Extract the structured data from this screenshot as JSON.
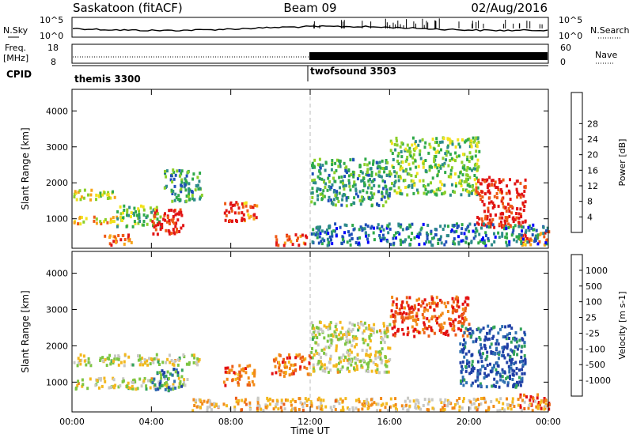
{
  "header": {
    "station": "Saskatoon (fitACF)",
    "beam": "Beam 09",
    "date": "02/Aug/2016"
  },
  "top_panels": {
    "nsky_label": "N.Sky",
    "nsky_ticks": [
      "10^5",
      "10^0"
    ],
    "nsearch_label": "N.Search",
    "freq_label": "Freq.",
    "freq_unit": "[MHz]",
    "freq_ticks": [
      "18",
      "8"
    ],
    "nave_label": "Nave",
    "nave_ticks": [
      "60",
      "0"
    ],
    "cpid_label": "CPID",
    "cpid_segments": [
      "themis 3300",
      "twofsound 3503"
    ]
  },
  "chart_data": [
    {
      "type": "heatmap",
      "name": "power",
      "xlabel": "Time UT",
      "ylabel": "Slant Range [km]",
      "xlim": [
        0,
        24
      ],
      "ylim": [
        180,
        4600
      ],
      "x_ticks": [
        "00:00",
        "04:00",
        "08:00",
        "12:00",
        "16:00",
        "20:00",
        "00:00"
      ],
      "y_ticks": [
        1000,
        2000,
        3000,
        4000
      ],
      "colorbar_label": "Power [dB]",
      "colorbar_ticks": [
        4,
        8,
        12,
        16,
        20,
        24,
        28
      ],
      "colorbar_colors": [
        "#0000ff",
        "#1f4fb8",
        "#2e8b8b",
        "#2faa4a",
        "#8ccf2a",
        "#f2e21d",
        "#f7a418",
        "#ef5a16",
        "#e11414"
      ],
      "regions": [
        {
          "x": [
            0,
            2.2
          ],
          "y": [
            1550,
            1850
          ],
          "level": 0.55
        },
        {
          "x": [
            0,
            2.4
          ],
          "y": [
            900,
            1100
          ],
          "level": 0.7
        },
        {
          "x": [
            2.2,
            4.5
          ],
          "y": [
            800,
            1400
          ],
          "level": 0.45
        },
        {
          "x": [
            4.0,
            5.6
          ],
          "y": [
            600,
            1300
          ],
          "level": 0.95
        },
        {
          "x": [
            4.6,
            6.5
          ],
          "y": [
            1500,
            2400
          ],
          "level": 0.35
        },
        {
          "x": [
            1.5,
            3.0
          ],
          "y": [
            300,
            600
          ],
          "level": 0.85
        },
        {
          "x": [
            7.6,
            8.6
          ],
          "y": [
            950,
            1500
          ],
          "level": 1.0
        },
        {
          "x": [
            8.6,
            9.3
          ],
          "y": [
            950,
            1500
          ],
          "level": 0.8
        },
        {
          "x": [
            10.2,
            11.8
          ],
          "y": [
            300,
            600
          ],
          "level": 0.9
        },
        {
          "x": [
            12.0,
            16.0
          ],
          "y": [
            1400,
            2700
          ],
          "level": 0.35
        },
        {
          "x": [
            16.0,
            20.5
          ],
          "y": [
            1700,
            3300
          ],
          "level": 0.45
        },
        {
          "x": [
            20.3,
            22.8
          ],
          "y": [
            800,
            2200
          ],
          "level": 0.95
        },
        {
          "x": [
            22.5,
            24.0
          ],
          "y": [
            300,
            700
          ],
          "level": 0.8
        },
        {
          "x": [
            12.0,
            24.0
          ],
          "y": [
            300,
            900
          ],
          "level": 0.25
        }
      ]
    },
    {
      "type": "heatmap",
      "name": "velocity",
      "xlabel": "Time UT",
      "ylabel": "Slant Range [km]",
      "xlim": [
        0,
        24
      ],
      "ylim": [
        180,
        4600
      ],
      "x_ticks": [
        "00:00",
        "04:00",
        "08:00",
        "12:00",
        "16:00",
        "20:00",
        "00:00"
      ],
      "y_ticks": [
        1000,
        2000,
        3000,
        4000
      ],
      "colorbar_label": "Velocity [m s-1]",
      "colorbar_ticks": [
        1000,
        500,
        100,
        25,
        -25,
        -100,
        -500,
        -1000
      ],
      "colorbar_colors": [
        "#1f3fa6",
        "#2e6fb0",
        "#33a35a",
        "#7dc542",
        "#c8c8c4",
        "#f3b81e",
        "#f28a17",
        "#ec5e18",
        "#e31010"
      ],
      "regions": [
        {
          "x": [
            0,
            6.5
          ],
          "y": [
            1500,
            1800
          ],
          "level": 0.5
        },
        {
          "x": [
            0,
            6.0
          ],
          "y": [
            850,
            1150
          ],
          "level": 0.5
        },
        {
          "x": [
            4.0,
            5.5
          ],
          "y": [
            800,
            1400
          ],
          "level": 0.22
        },
        {
          "x": [
            7.6,
            9.2
          ],
          "y": [
            950,
            1500
          ],
          "level": 0.82
        },
        {
          "x": [
            10.0,
            12.0
          ],
          "y": [
            1200,
            1800
          ],
          "level": 0.78
        },
        {
          "x": [
            12.0,
            16.0
          ],
          "y": [
            1300,
            2700
          ],
          "level": 0.5
        },
        {
          "x": [
            16.0,
            20.0
          ],
          "y": [
            2300,
            3400
          ],
          "level": 0.88
        },
        {
          "x": [
            19.5,
            22.8
          ],
          "y": [
            900,
            2600
          ],
          "level": 0.1
        },
        {
          "x": [
            22.5,
            24.0
          ],
          "y": [
            300,
            700
          ],
          "level": 0.9
        },
        {
          "x": [
            6.0,
            24.0
          ],
          "y": [
            250,
            600
          ],
          "level": 0.62
        }
      ]
    }
  ]
}
